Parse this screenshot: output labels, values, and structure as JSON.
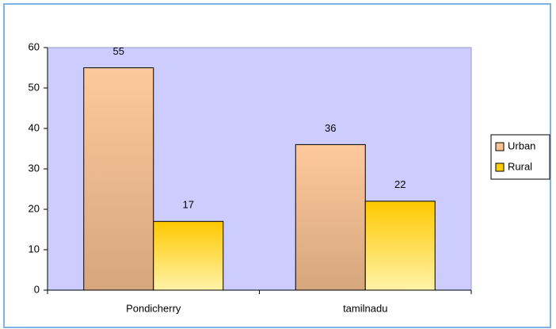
{
  "chart_data": {
    "type": "bar",
    "categories": [
      "Pondicherry",
      "tamilnadu"
    ],
    "series": [
      {
        "name": "Urban",
        "color": "#fcc495",
        "values": [
          55,
          36
        ]
      },
      {
        "name": "Rural",
        "color": "#ffcc00",
        "values": [
          17,
          22
        ]
      }
    ],
    "ylim": [
      0,
      60
    ],
    "yticks": [
      0,
      10,
      20,
      30,
      40,
      50,
      60
    ],
    "legend": "right"
  }
}
